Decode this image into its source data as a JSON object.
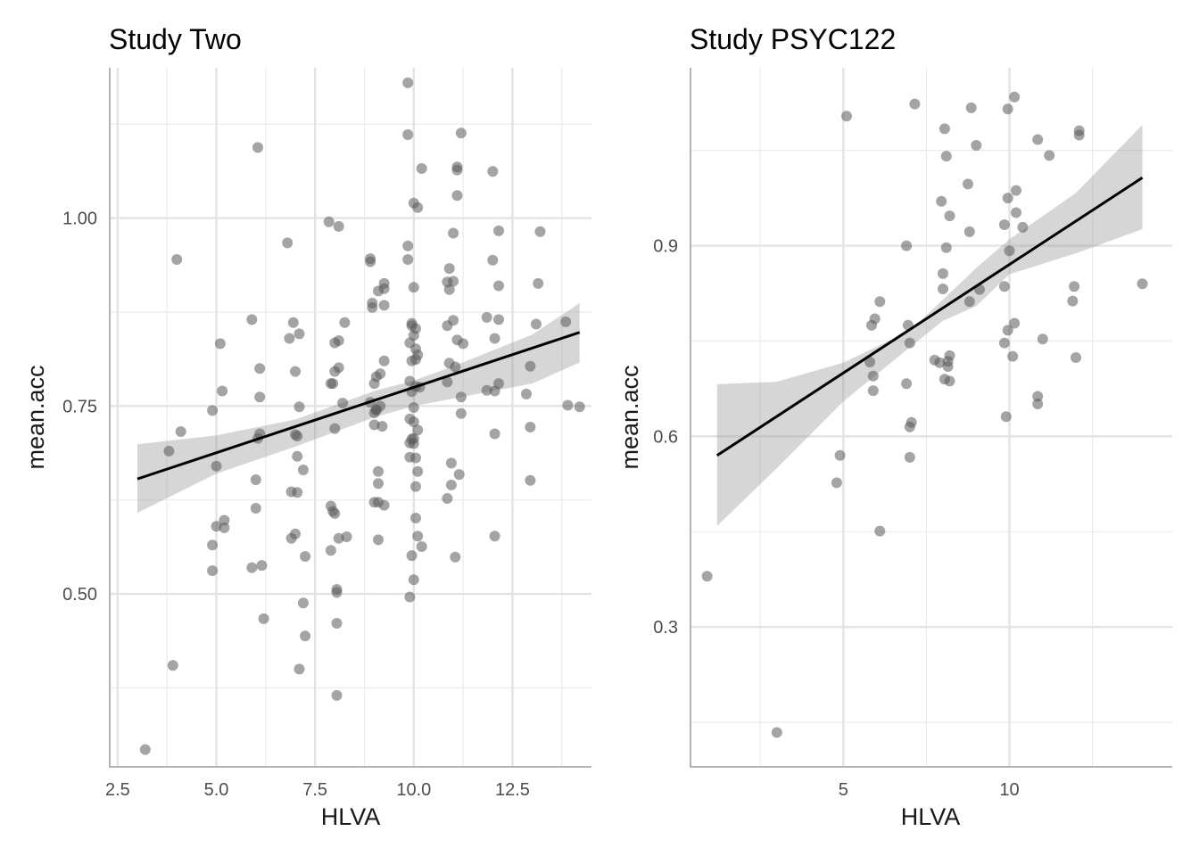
{
  "chart_data": [
    {
      "type": "scatter",
      "title": "Study Two",
      "xlabel": "HLVA",
      "ylabel": "mean.acc",
      "xlim": [
        2.3,
        14.5
      ],
      "ylim": [
        0.27,
        1.2
      ],
      "x_ticks": [
        2.5,
        5.0,
        7.5,
        10.0,
        12.5
      ],
      "x_tick_labels": [
        "2.5",
        "5.0",
        "7.5",
        "10.0",
        "12.5"
      ],
      "y_ticks": [
        0.5,
        0.75,
        1.0
      ],
      "y_tick_labels": [
        "0.50",
        "0.75",
        "1.00"
      ],
      "grid": true,
      "point_color": "#595959",
      "points": [
        [
          3.2,
          0.293
        ],
        [
          3.8,
          0.69
        ],
        [
          3.9,
          0.405
        ],
        [
          4.0,
          0.945
        ],
        [
          4.1,
          0.716
        ],
        [
          4.9,
          0.744
        ],
        [
          4.9,
          0.565
        ],
        [
          4.9,
          0.531
        ],
        [
          5.0,
          0.59
        ],
        [
          5.0,
          0.67
        ],
        [
          5.1,
          0.833
        ],
        [
          5.15,
          0.77
        ],
        [
          5.2,
          0.588
        ],
        [
          5.2,
          0.598
        ],
        [
          5.9,
          0.865
        ],
        [
          5.9,
          0.535
        ],
        [
          6.0,
          0.652
        ],
        [
          6.0,
          0.614
        ],
        [
          6.05,
          1.094
        ],
        [
          6.05,
          0.707
        ],
        [
          6.1,
          0.8
        ],
        [
          6.1,
          0.762
        ],
        [
          6.1,
          0.713
        ],
        [
          6.15,
          0.538
        ],
        [
          6.2,
          0.467
        ],
        [
          6.8,
          0.967
        ],
        [
          6.85,
          0.84
        ],
        [
          6.9,
          0.636
        ],
        [
          6.9,
          0.574
        ],
        [
          6.95,
          0.861
        ],
        [
          7.0,
          0.796
        ],
        [
          7.0,
          0.712
        ],
        [
          7.0,
          0.58
        ],
        [
          7.05,
          0.71
        ],
        [
          7.05,
          0.683
        ],
        [
          7.05,
          0.635
        ],
        [
          7.1,
          0.749
        ],
        [
          7.1,
          0.846
        ],
        [
          7.1,
          0.4
        ],
        [
          7.2,
          0.665
        ],
        [
          7.2,
          0.488
        ],
        [
          7.25,
          0.55
        ],
        [
          7.25,
          0.444
        ],
        [
          7.85,
          0.995
        ],
        [
          7.9,
          0.78
        ],
        [
          7.9,
          0.617
        ],
        [
          7.9,
          0.558
        ],
        [
          7.95,
          0.78
        ],
        [
          7.95,
          0.61
        ],
        [
          8.0,
          0.834
        ],
        [
          8.0,
          0.796
        ],
        [
          8.0,
          0.72
        ],
        [
          8.0,
          0.607
        ],
        [
          8.05,
          0.506
        ],
        [
          8.05,
          0.502
        ],
        [
          8.05,
          0.461
        ],
        [
          8.05,
          0.365
        ],
        [
          8.1,
          0.989
        ],
        [
          8.1,
          0.837
        ],
        [
          8.1,
          0.801
        ],
        [
          8.1,
          0.574
        ],
        [
          8.2,
          0.754
        ],
        [
          8.25,
          0.861
        ],
        [
          8.3,
          0.576
        ],
        [
          8.9,
          0.942
        ],
        [
          8.9,
          0.946
        ],
        [
          8.9,
          0.755
        ],
        [
          8.95,
          0.887
        ],
        [
          8.95,
          0.881
        ],
        [
          9.0,
          0.78
        ],
        [
          9.0,
          0.741
        ],
        [
          9.0,
          0.725
        ],
        [
          9.0,
          0.622
        ],
        [
          9.05,
          0.789
        ],
        [
          9.05,
          0.745
        ],
        [
          9.05,
          0.745
        ],
        [
          9.1,
          0.903
        ],
        [
          9.1,
          0.663
        ],
        [
          9.1,
          0.647
        ],
        [
          9.1,
          0.622
        ],
        [
          9.1,
          0.572
        ],
        [
          9.15,
          0.75
        ],
        [
          9.15,
          0.793
        ],
        [
          9.2,
          0.723
        ],
        [
          9.25,
          0.913
        ],
        [
          9.25,
          0.906
        ],
        [
          9.25,
          0.884
        ],
        [
          9.25,
          0.81
        ],
        [
          9.25,
          0.618
        ],
        [
          9.85,
          1.18
        ],
        [
          9.85,
          1.111
        ],
        [
          9.85,
          0.963
        ],
        [
          9.85,
          0.945
        ],
        [
          9.9,
          0.834
        ],
        [
          9.9,
          0.783
        ],
        [
          9.9,
          0.733
        ],
        [
          9.9,
          0.701
        ],
        [
          9.9,
          0.682
        ],
        [
          9.9,
          0.496
        ],
        [
          9.95,
          0.86
        ],
        [
          9.95,
          0.857
        ],
        [
          9.95,
          0.81
        ],
        [
          9.95,
          0.769
        ],
        [
          9.95,
          0.706
        ],
        [
          9.95,
          0.551
        ],
        [
          10.0,
          1.02
        ],
        [
          10.0,
          0.908
        ],
        [
          10.0,
          0.844
        ],
        [
          10.0,
          0.748
        ],
        [
          10.0,
          0.729
        ],
        [
          10.0,
          0.707
        ],
        [
          10.0,
          0.7
        ],
        [
          10.0,
          0.519
        ],
        [
          10.05,
          0.853
        ],
        [
          10.05,
          0.826
        ],
        [
          10.05,
          0.812
        ],
        [
          10.05,
          0.776
        ],
        [
          10.05,
          0.681
        ],
        [
          10.05,
          0.643
        ],
        [
          10.05,
          0.601
        ],
        [
          10.1,
          1.014
        ],
        [
          10.1,
          0.818
        ],
        [
          10.1,
          0.718
        ],
        [
          10.1,
          0.663
        ],
        [
          10.1,
          0.577
        ],
        [
          10.15,
          0.775
        ],
        [
          10.2,
          1.066
        ],
        [
          10.2,
          0.563
        ],
        [
          10.85,
          0.915
        ],
        [
          10.85,
          0.857
        ],
        [
          10.85,
          0.782
        ],
        [
          10.85,
          0.627
        ],
        [
          10.9,
          0.933
        ],
        [
          10.9,
          0.905
        ],
        [
          10.9,
          0.807
        ],
        [
          10.95,
          0.674
        ],
        [
          10.95,
          0.645
        ],
        [
          11.0,
          0.98
        ],
        [
          11.0,
          0.916
        ],
        [
          11.0,
          0.864
        ],
        [
          11.05,
          0.802
        ],
        [
          11.05,
          0.549
        ],
        [
          11.1,
          1.068
        ],
        [
          11.1,
          1.03
        ],
        [
          11.1,
          1.064
        ],
        [
          11.1,
          0.838
        ],
        [
          11.15,
          0.659
        ],
        [
          11.2,
          1.113
        ],
        [
          11.2,
          0.74
        ],
        [
          11.2,
          0.762
        ],
        [
          11.25,
          0.833
        ],
        [
          11.85,
          0.868
        ],
        [
          11.85,
          0.771
        ],
        [
          12.0,
          1.062
        ],
        [
          12.0,
          0.944
        ],
        [
          12.05,
          0.84
        ],
        [
          12.05,
          0.77
        ],
        [
          12.05,
          0.713
        ],
        [
          12.05,
          0.577
        ],
        [
          12.15,
          0.983
        ],
        [
          12.15,
          0.91
        ],
        [
          12.15,
          0.865
        ],
        [
          12.15,
          0.78
        ],
        [
          12.85,
          0.766
        ],
        [
          12.95,
          0.803
        ],
        [
          12.95,
          0.722
        ],
        [
          12.95,
          0.651
        ],
        [
          13.1,
          0.859
        ],
        [
          13.15,
          0.913
        ],
        [
          13.2,
          0.982
        ],
        [
          13.85,
          0.862
        ],
        [
          13.9,
          0.751
        ],
        [
          14.2,
          0.749
        ]
      ],
      "fit_line": {
        "x": [
          3.0,
          14.2
        ],
        "y": [
          0.653,
          0.848
        ]
      },
      "confidence_band": {
        "x": [
          3.0,
          5.0,
          7.0,
          9.0,
          10.0,
          11.0,
          13.0,
          14.2
        ],
        "upper": [
          0.699,
          0.711,
          0.732,
          0.77,
          0.784,
          0.803,
          0.845,
          0.887
        ],
        "lower": [
          0.608,
          0.66,
          0.696,
          0.735,
          0.75,
          0.76,
          0.78,
          0.808
        ]
      }
    },
    {
      "type": "scatter",
      "title": "Study PSYC122",
      "xlabel": "HLVA",
      "ylabel": "mean.acc",
      "xlim": [
        0.4,
        14.9
      ],
      "ylim": [
        0.08,
        1.18
      ],
      "x_ticks": [
        5,
        10
      ],
      "x_tick_labels": [
        "5",
        "10"
      ],
      "y_ticks": [
        0.3,
        0.6,
        0.9
      ],
      "y_tick_labels": [
        "0.3",
        "0.6",
        "0.9"
      ],
      "grid": true,
      "point_color": "#595959",
      "points": [
        [
          0.9,
          0.38
        ],
        [
          3.0,
          0.134
        ],
        [
          4.8,
          0.527
        ],
        [
          4.9,
          0.57
        ],
        [
          5.1,
          1.104
        ],
        [
          5.8,
          0.717
        ],
        [
          5.85,
          0.775
        ],
        [
          5.9,
          0.695
        ],
        [
          5.9,
          0.672
        ],
        [
          5.95,
          0.785
        ],
        [
          6.1,
          0.812
        ],
        [
          6.1,
          0.451
        ],
        [
          6.9,
          0.9
        ],
        [
          6.9,
          0.683
        ],
        [
          6.95,
          0.775
        ],
        [
          7.0,
          0.747
        ],
        [
          7.0,
          0.615
        ],
        [
          7.0,
          0.567
        ],
        [
          7.05,
          0.622
        ],
        [
          7.15,
          1.123
        ],
        [
          7.75,
          0.72
        ],
        [
          7.9,
          0.716
        ],
        [
          7.95,
          0.97
        ],
        [
          8.0,
          0.856
        ],
        [
          8.0,
          0.832
        ],
        [
          8.05,
          0.69
        ],
        [
          8.05,
          1.084
        ],
        [
          8.1,
          1.041
        ],
        [
          8.1,
          0.897
        ],
        [
          8.15,
          0.718
        ],
        [
          8.15,
          0.71
        ],
        [
          8.2,
          0.947
        ],
        [
          8.2,
          0.727
        ],
        [
          8.2,
          0.687
        ],
        [
          8.75,
          0.997
        ],
        [
          8.8,
          0.922
        ],
        [
          8.8,
          0.812
        ],
        [
          8.85,
          1.117
        ],
        [
          9.0,
          1.058
        ],
        [
          9.1,
          0.831
        ],
        [
          9.85,
          0.933
        ],
        [
          9.85,
          0.836
        ],
        [
          9.85,
          0.747
        ],
        [
          9.9,
          0.631
        ],
        [
          9.95,
          1.115
        ],
        [
          9.95,
          0.975
        ],
        [
          9.95,
          0.767
        ],
        [
          10.0,
          0.892
        ],
        [
          10.1,
          0.726
        ],
        [
          10.15,
          0.778
        ],
        [
          10.15,
          1.134
        ],
        [
          10.2,
          0.987
        ],
        [
          10.2,
          0.952
        ],
        [
          10.4,
          0.929
        ],
        [
          10.85,
          1.067
        ],
        [
          10.85,
          0.663
        ],
        [
          10.85,
          0.651
        ],
        [
          11.0,
          0.753
        ],
        [
          11.2,
          1.042
        ],
        [
          11.9,
          0.813
        ],
        [
          11.95,
          0.836
        ],
        [
          12.0,
          0.724
        ],
        [
          12.1,
          1.074
        ],
        [
          12.1,
          1.081
        ],
        [
          14.0,
          0.84
        ]
      ],
      "fit_line": {
        "x": [
          1.2,
          14.0
        ],
        "y": [
          0.57,
          1.007
        ]
      },
      "confidence_band": {
        "x": [
          1.2,
          3.0,
          5.0,
          7.0,
          8.0,
          9.0,
          10.0,
          12.0,
          14.0
        ],
        "upper": [
          0.682,
          0.686,
          0.716,
          0.766,
          0.815,
          0.865,
          0.91,
          0.983,
          1.09
        ],
        "lower": [
          0.459,
          0.55,
          0.655,
          0.74,
          0.782,
          0.805,
          0.855,
          0.888,
          0.926
        ]
      }
    }
  ]
}
